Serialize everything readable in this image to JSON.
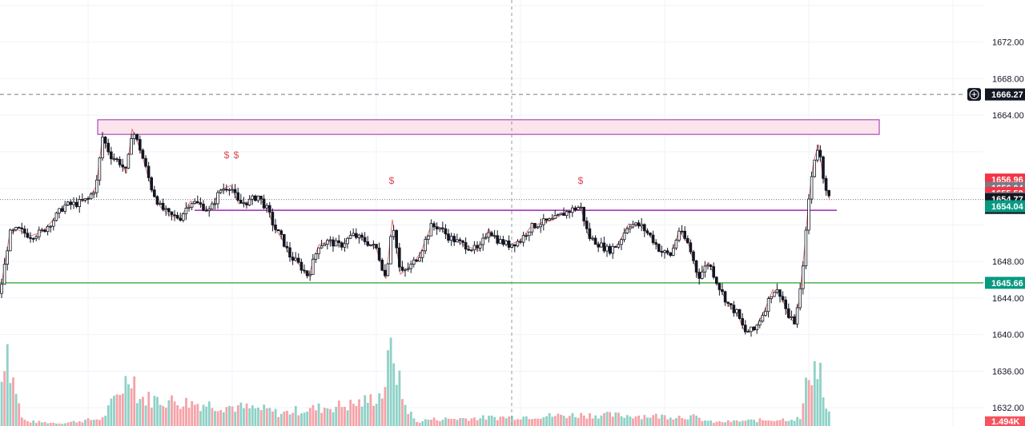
{
  "chart_data": {
    "type": "candlestick",
    "y_axis": {
      "range": [
        1630.0,
        1676.6
      ],
      "ticks": [
        {
          "value": 1672,
          "label": "1672.00"
        },
        {
          "value": 1668,
          "label": "1668.00"
        },
        {
          "value": 1664,
          "label": "1664.00"
        },
        {
          "value": 1648,
          "label": "1648.00"
        },
        {
          "value": 1644,
          "label": "1644.00"
        },
        {
          "value": 1640,
          "label": "1640.00"
        },
        {
          "value": 1636,
          "label": "1636.00"
        },
        {
          "value": 1632,
          "label": "1632.00"
        }
      ]
    },
    "price_labels": [
      {
        "value": 1666.27,
        "label": "1666.27",
        "color": "#131722",
        "icon": "plus-circle-icon"
      },
      {
        "value": 1656.96,
        "label": "1656.96",
        "color": "#f23645"
      },
      {
        "value": 1656.04,
        "label": "1656.04",
        "color": "#787b86"
      },
      {
        "value": 1655.5,
        "label": "1655.50",
        "color": "#f23645"
      },
      {
        "value": 1654.92,
        "label": "1654.92",
        "color": "#787b86"
      },
      {
        "value": 1654.77,
        "label": "1654.77",
        "sublabel": "06:02",
        "color": "#131722"
      },
      {
        "value": 1654.04,
        "label": "1654.04",
        "color": "#089981"
      },
      {
        "value": 1645.66,
        "label": "1645.66",
        "color": "#089981"
      }
    ],
    "volume_label": {
      "label": "1.494K",
      "color": "#f7525f"
    },
    "zone": {
      "top": 1663.5,
      "bottom": 1661.9,
      "color": "#9c27b0",
      "fill": "#fce4ec"
    },
    "horizontal_lines": [
      {
        "value": 1653.6,
        "color": "#9c27b0",
        "style": "solid"
      },
      {
        "value": 1645.66,
        "color": "#4caf50",
        "style": "solid"
      },
      {
        "value": 1666.27,
        "color": "#787b86",
        "style": "dashed"
      },
      {
        "value": 1654.77,
        "color": "#787b86",
        "style": "dotted"
      }
    ],
    "markers": [
      {
        "symbol": "$",
        "price": 1659.3
      },
      {
        "symbol": "$",
        "price": 1659.3
      },
      {
        "symbol": "$",
        "price": 1656.5
      },
      {
        "symbol": "$",
        "price": 1656.5
      }
    ],
    "anchors": [
      [
        0,
        1644.5
      ],
      [
        12,
        1651
      ],
      [
        22,
        1651.5
      ],
      [
        38,
        1650.8
      ],
      [
        52,
        1651.2
      ],
      [
        66,
        1652.5
      ],
      [
        80,
        1654.1
      ],
      [
        95,
        1654.3
      ],
      [
        110,
        1654.8
      ],
      [
        120,
        1656.2
      ],
      [
        128,
        1661.6
      ],
      [
        138,
        1659.6
      ],
      [
        150,
        1658.8
      ],
      [
        158,
        1657.7
      ],
      [
        165,
        1662.5
      ],
      [
        175,
        1660.3
      ],
      [
        190,
        1655.8
      ],
      [
        200,
        1654
      ],
      [
        212,
        1653
      ],
      [
        225,
        1652.8
      ],
      [
        238,
        1654.6
      ],
      [
        250,
        1654.2
      ],
      [
        262,
        1653.5
      ],
      [
        275,
        1655.8
      ],
      [
        288,
        1656.3
      ],
      [
        298,
        1654.3
      ],
      [
        312,
        1654.6
      ],
      [
        322,
        1655.2
      ],
      [
        335,
        1653.5
      ],
      [
        342,
        1651.8
      ],
      [
        352,
        1650.5
      ],
      [
        362,
        1648.6
      ],
      [
        372,
        1647.8
      ],
      [
        385,
        1646.4
      ],
      [
        398,
        1649.8
      ],
      [
        410,
        1650.2
      ],
      [
        425,
        1649.7
      ],
      [
        440,
        1650.9
      ],
      [
        455,
        1650.3
      ],
      [
        470,
        1649.4
      ],
      [
        482,
        1646.1
      ],
      [
        490,
        1652.6
      ],
      [
        500,
        1646.6
      ],
      [
        512,
        1647.4
      ],
      [
        525,
        1648.9
      ],
      [
        538,
        1651.8
      ],
      [
        548,
        1651.8
      ],
      [
        560,
        1650.7
      ],
      [
        572,
        1650.1
      ],
      [
        585,
        1649.6
      ],
      [
        598,
        1649.2
      ],
      [
        610,
        1651.5
      ],
      [
        622,
        1650.3
      ],
      [
        635,
        1649.8
      ],
      [
        650,
        1650.3
      ],
      [
        662,
        1651.7
      ],
      [
        675,
        1652.2
      ],
      [
        690,
        1652.5
      ],
      [
        705,
        1653.3
      ],
      [
        715,
        1653.7
      ],
      [
        725,
        1654.0
      ],
      [
        735,
        1650.7
      ],
      [
        748,
        1649.9
      ],
      [
        760,
        1649.2
      ],
      [
        772,
        1649.9
      ],
      [
        785,
        1652.1
      ],
      [
        800,
        1651.9
      ],
      [
        812,
        1650.8
      ],
      [
        825,
        1649.1
      ],
      [
        838,
        1648.7
      ],
      [
        848,
        1651.4
      ],
      [
        860,
        1649.8
      ],
      [
        872,
        1646.3
      ],
      [
        885,
        1647.9
      ],
      [
        898,
        1645.2
      ],
      [
        910,
        1643.2
      ],
      [
        920,
        1642.4
      ],
      [
        930,
        1640.3
      ],
      [
        942,
        1640.5
      ],
      [
        955,
        1642.7
      ],
      [
        965,
        1644.9
      ],
      [
        975,
        1644.5
      ],
      [
        985,
        1641.8
      ],
      [
        992,
        1641.4
      ],
      [
        998,
        1643.7
      ],
      [
        1005,
        1649.7
      ],
      [
        1010,
        1654.8
      ],
      [
        1016,
        1658.9
      ],
      [
        1022,
        1660.8
      ],
      [
        1027,
        1657.7
      ],
      [
        1032,
        1656.0
      ],
      [
        1036,
        1654.7
      ]
    ],
    "volume_anchors": [
      [
        0,
        0.3
      ],
      [
        8,
        1.0
      ],
      [
        14,
        0.55
      ],
      [
        20,
        0.4
      ],
      [
        26,
        0.1
      ],
      [
        32,
        0.05
      ],
      [
        75,
        0.03
      ],
      [
        128,
        0.08
      ],
      [
        160,
        0.52
      ],
      [
        165,
        0.62
      ],
      [
        172,
        0.3
      ],
      [
        335,
        0.17
      ],
      [
        350,
        0.13
      ],
      [
        365,
        0.16
      ],
      [
        440,
        0.23
      ],
      [
        460,
        0.27
      ],
      [
        478,
        0.35
      ],
      [
        490,
        0.88
      ],
      [
        495,
        0.59
      ],
      [
        505,
        0.23
      ],
      [
        520,
        0.04
      ],
      [
        535,
        0.07
      ],
      [
        730,
        0.12
      ],
      [
        865,
        0.1
      ],
      [
        880,
        0.06
      ],
      [
        890,
        0.04
      ],
      [
        1000,
        0.08
      ],
      [
        1010,
        0.59
      ],
      [
        1018,
        0.64
      ],
      [
        1024,
        0.62
      ],
      [
        1030,
        0.2
      ],
      [
        1040,
        0.05
      ]
    ]
  }
}
